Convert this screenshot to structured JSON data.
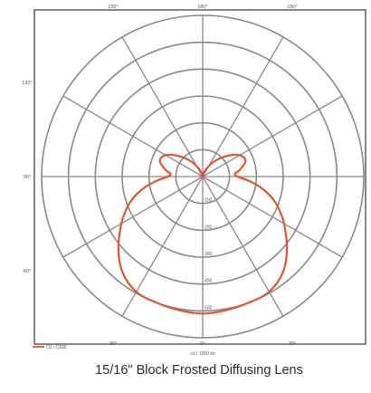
{
  "chart_data": {
    "type": "polar",
    "title": "15/16\" Block Frosted Diffusing Lens",
    "unit_label": "cd / 1000 lm",
    "legend": [
      {
        "name": "C0 / C180",
        "color": "#e2552d"
      }
    ],
    "radial_tick_labels": [
      "100",
      "200",
      "300",
      "400",
      "500"
    ],
    "radial_range": [
      0,
      600
    ],
    "angle_labels": {
      "top": [
        "150°",
        "180°",
        "150°"
      ],
      "left": [
        "120°",
        "90°",
        "60°"
      ],
      "bottom": [
        "30°",
        "0°",
        "30°"
      ]
    },
    "series": [
      {
        "name": "C0 / C180",
        "color": "#e2552d",
        "angles": [
          0,
          10,
          20,
          30,
          40,
          50,
          60,
          65,
          70,
          75,
          80,
          85,
          90,
          95,
          100,
          110,
          120,
          130,
          140,
          150,
          160,
          170,
          180
        ],
        "values": [
          510,
          505,
          500,
          495,
          465,
          410,
          350,
          320,
          290,
          255,
          215,
          170,
          130,
          120,
          140,
          170,
          160,
          120,
          80,
          45,
          20,
          5,
          0
        ]
      }
    ]
  }
}
